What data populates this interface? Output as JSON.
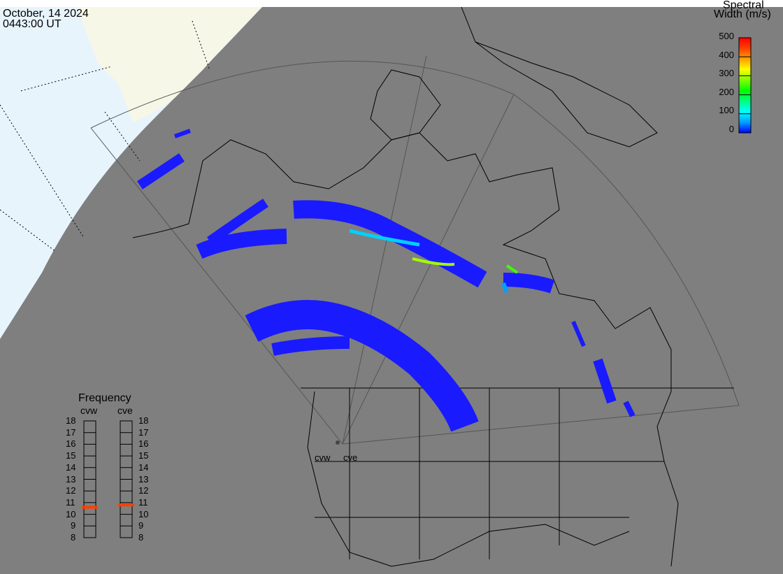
{
  "header": {
    "date": "October, 14 2024",
    "time": "0443:00 UT"
  },
  "colorbar": {
    "title_line1": "Spectral",
    "title_line2": "Width (m/s)",
    "ticks": [
      "500",
      "400",
      "300",
      "200",
      "100",
      "0"
    ],
    "range": [
      0,
      500
    ],
    "colors": [
      "#0000ff",
      "#00a0ff",
      "#00ffff",
      "#00ff80",
      "#00ff00",
      "#80ff00",
      "#ffff00",
      "#ffa000",
      "#ff4000",
      "#ff0000"
    ]
  },
  "frequency": {
    "title": "Frequency",
    "radars": [
      {
        "name": "cvw",
        "value_mhz": 10.6
      },
      {
        "name": "cve",
        "value_mhz": 10.8
      }
    ],
    "ticks": [
      "18",
      "17",
      "16",
      "15",
      "14",
      "13",
      "12",
      "11",
      "10",
      "9",
      "8"
    ],
    "range": [
      8,
      18
    ],
    "marker_color": "#ff4000"
  },
  "map": {
    "background": "#7f7f7f",
    "day_ocean": "#e8f4fc",
    "day_land": "#f7f7e8",
    "radar_labels": [
      "cvw",
      "cve"
    ]
  }
}
